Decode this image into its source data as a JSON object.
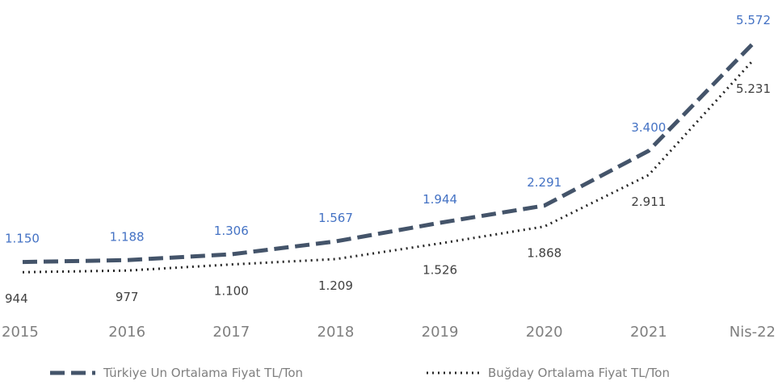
{
  "chart_data": {
    "type": "line",
    "title": "",
    "xlabel": "",
    "ylabel": "",
    "categories": [
      "2015",
      "2016",
      "2017",
      "2018",
      "2019",
      "2020",
      "2021",
      "Nis-22"
    ],
    "series": [
      {
        "name": "Türkiye Un Ortalama Fiyat TL/Ton",
        "values": [
          1150,
          1188,
          1306,
          1567,
          1944,
          2291,
          3400,
          5572
        ],
        "labels": [
          "1.150",
          "1.188",
          "1.306",
          "1.567",
          "1.944",
          "2.291",
          "3.400",
          "5.572"
        ],
        "style": "dashed",
        "color": "#44546a",
        "label_color": "#4472c4"
      },
      {
        "name": "Buğday Ortalama Fiyat TL/Ton",
        "values": [
          944,
          977,
          1100,
          1209,
          1526,
          1868,
          2911,
          5231
        ],
        "labels": [
          "944",
          "977",
          "1.100",
          "1.209",
          "1.526",
          "1.868",
          "2.911",
          "5.231"
        ],
        "style": "dotted",
        "color": "#262626",
        "label_color": "#404040"
      }
    ],
    "ylim": [
      0,
      5800
    ],
    "grid": false,
    "legend_position": "bottom"
  }
}
